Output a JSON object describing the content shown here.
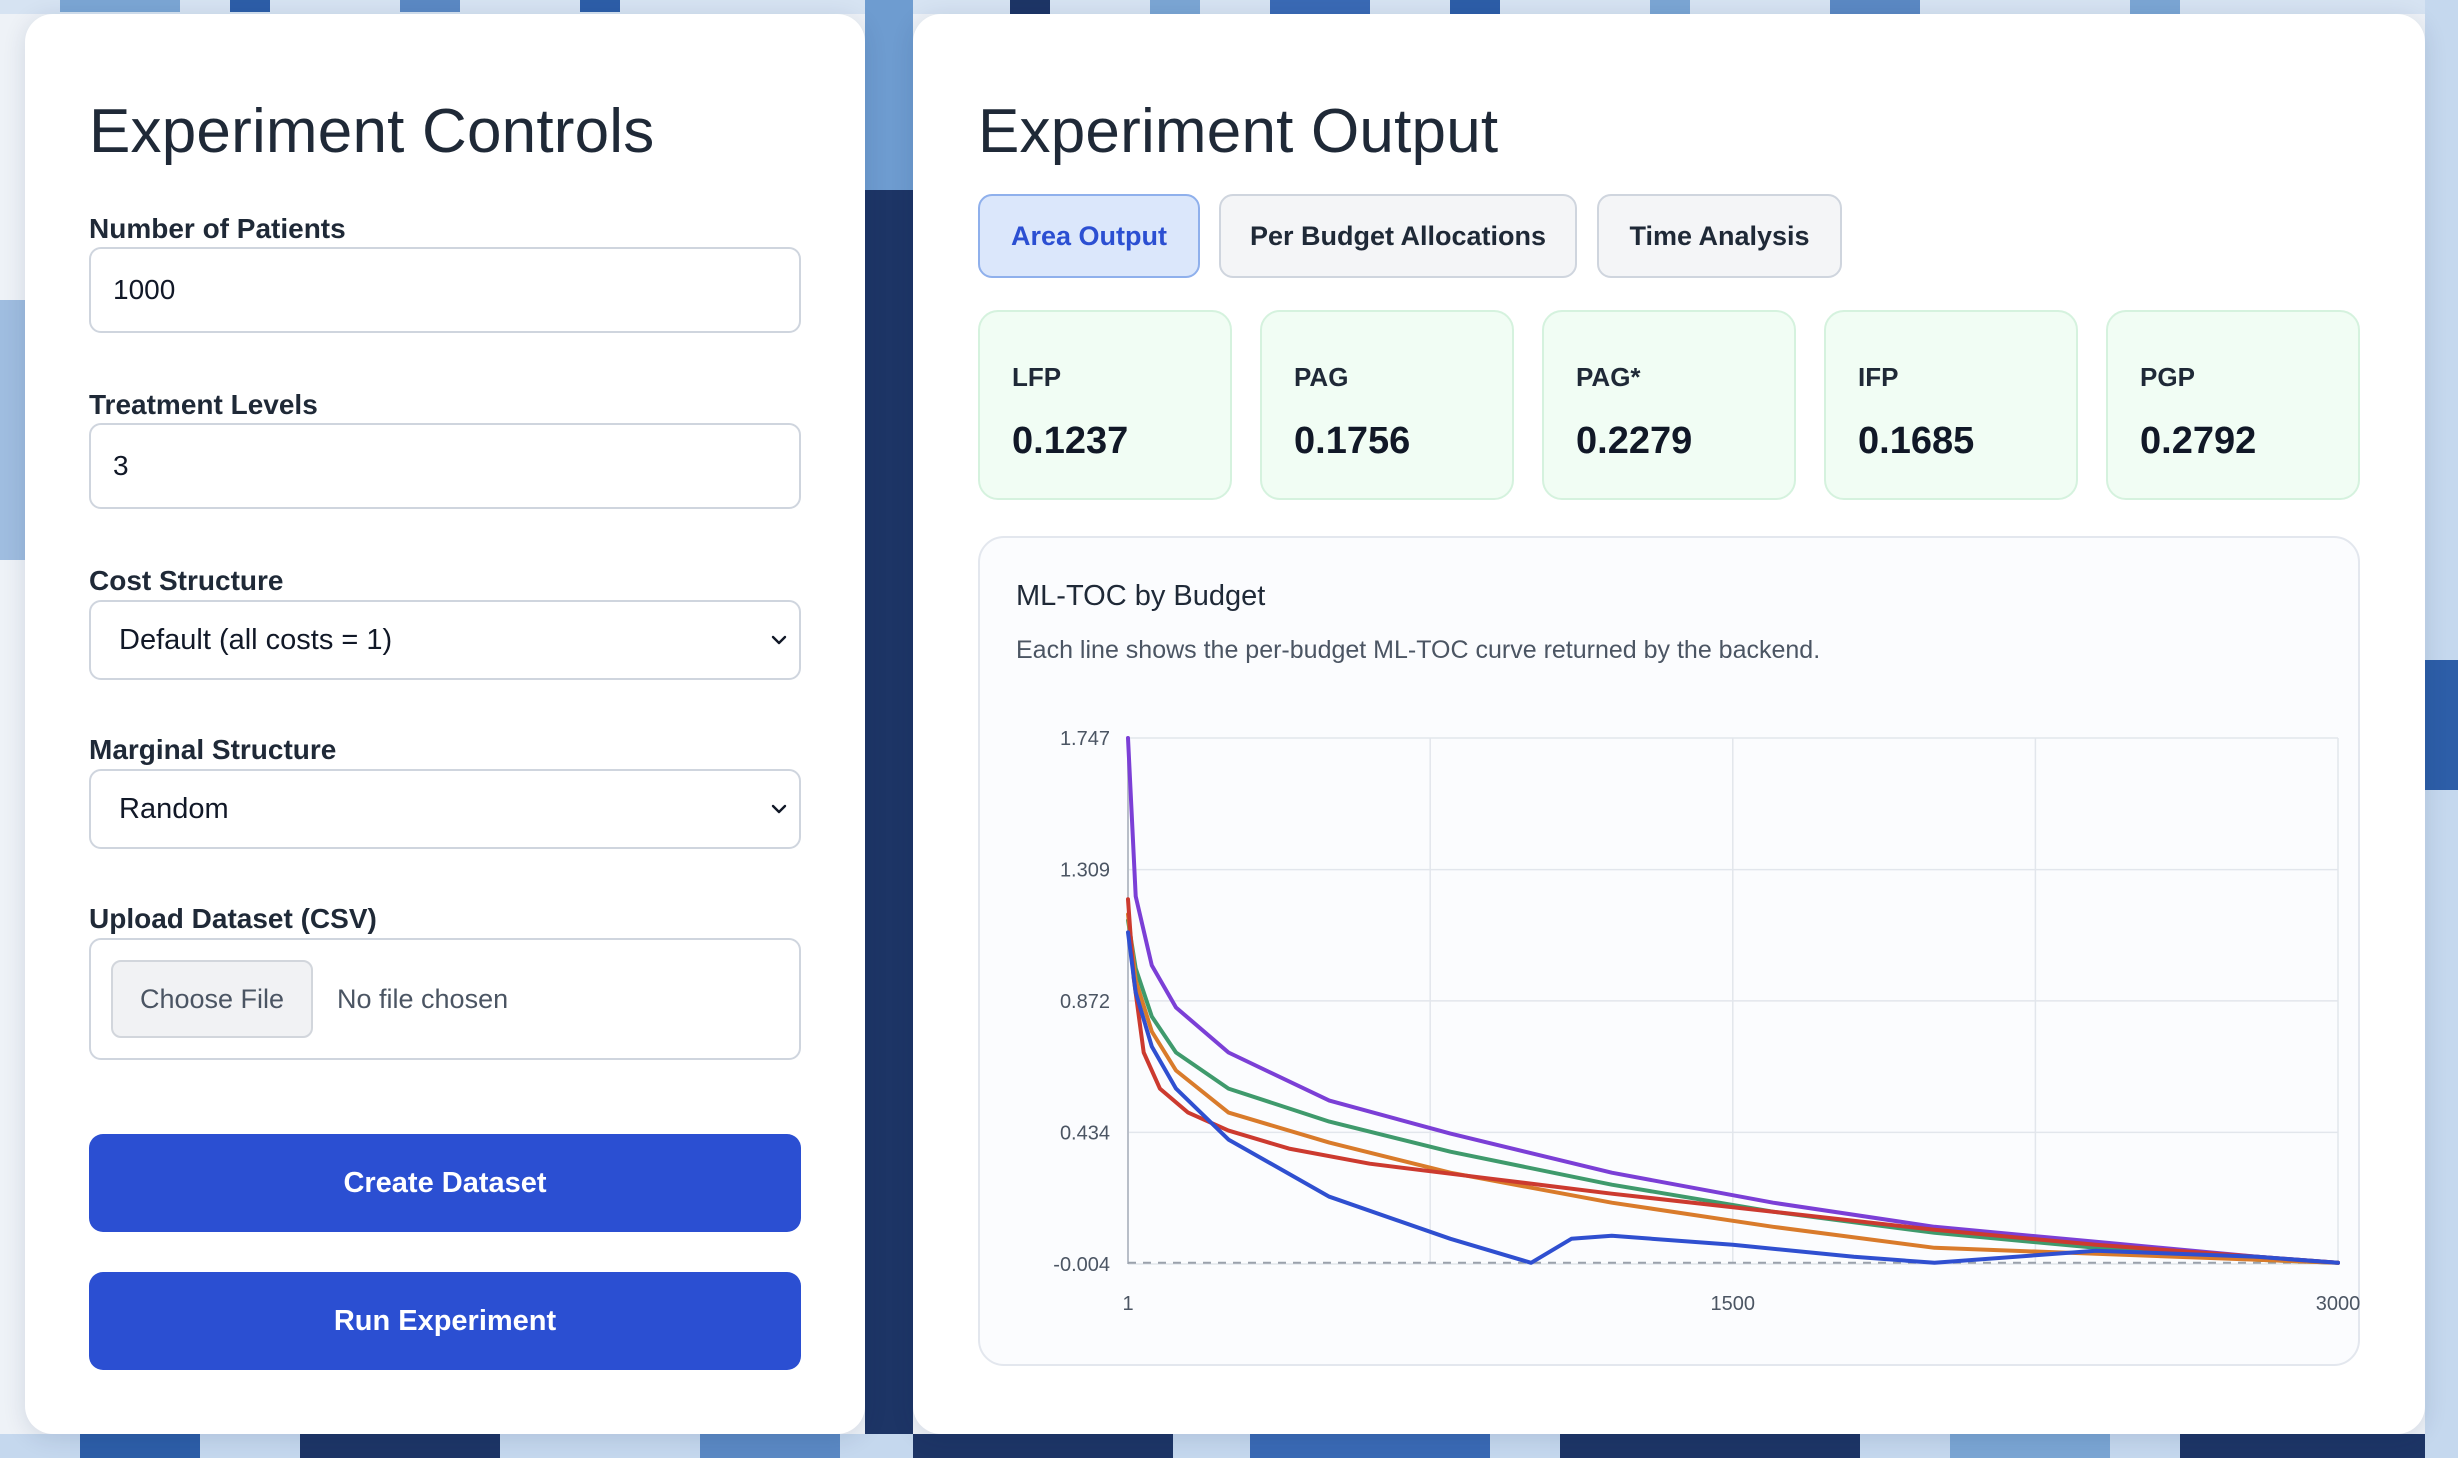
{
  "controls": {
    "title": "Experiment Controls",
    "patients_label": "Number of Patients",
    "patients_value": "1000",
    "levels_label": "Treatment Levels",
    "levels_value": "3",
    "cost_label": "Cost Structure",
    "cost_value": "Default (all costs = 1)",
    "marginal_label": "Marginal Structure",
    "marginal_value": "Random",
    "upload_label": "Upload Dataset (CSV)",
    "choose_file": "Choose File",
    "no_file": "No file chosen",
    "create_button": "Create Dataset",
    "run_button": "Run Experiment"
  },
  "output": {
    "title": "Experiment Output",
    "tabs": [
      {
        "label": "Area Output",
        "active": true
      },
      {
        "label": "Per Budget Allocations",
        "active": false
      },
      {
        "label": "Time Analysis",
        "active": false
      }
    ],
    "metrics": [
      {
        "label": "LFP",
        "value": "0.1237"
      },
      {
        "label": "PAG",
        "value": "0.1756"
      },
      {
        "label": "PAG*",
        "value": "0.2279"
      },
      {
        "label": "IFP",
        "value": "0.1685"
      },
      {
        "label": "PGP",
        "value": "0.2792"
      }
    ],
    "chart": {
      "title": "ML-TOC by Budget",
      "subtitle": "Each line shows the per-budget ML-TOC curve returned by the backend."
    }
  },
  "chart_data": {
    "type": "line",
    "title": "ML-TOC by Budget",
    "xlim": [
      1,
      3000
    ],
    "ylim": [
      -0.004,
      1.747
    ],
    "x_ticks": [
      "1",
      "1500",
      "3000"
    ],
    "y_ticks": [
      "1.747",
      "1.309",
      "0.872",
      "0.434",
      "-0.004"
    ],
    "grid": true,
    "baseline": 0,
    "series": [
      {
        "color": "#7b3fd6",
        "x": [
          1,
          20,
          60,
          120,
          250,
          500,
          800,
          1200,
          1600,
          2000,
          2400,
          2800,
          3000
        ],
        "y": [
          1.747,
          1.22,
          0.99,
          0.85,
          0.7,
          0.54,
          0.43,
          0.3,
          0.2,
          0.12,
          0.07,
          0.02,
          0.0
        ]
      },
      {
        "color": "#3f9a6c",
        "x": [
          1,
          20,
          60,
          120,
          250,
          500,
          800,
          1200,
          1600,
          2000,
          2400,
          2800,
          3000
        ],
        "y": [
          1.14,
          0.98,
          0.82,
          0.7,
          0.58,
          0.47,
          0.37,
          0.26,
          0.17,
          0.1,
          0.05,
          0.01,
          0.0
        ]
      },
      {
        "color": "#d97b2b",
        "x": [
          1,
          20,
          60,
          120,
          250,
          500,
          800,
          1200,
          1600,
          2000,
          2400,
          2800,
          3000
        ],
        "y": [
          1.16,
          0.94,
          0.77,
          0.64,
          0.5,
          0.4,
          0.3,
          0.2,
          0.12,
          0.05,
          0.03,
          0.01,
          0.0
        ]
      },
      {
        "color": "#cc3a2f",
        "x": [
          1,
          15,
          40,
          80,
          150,
          250,
          400,
          600,
          900,
          1200,
          1600,
          2000,
          2400,
          2800,
          3000
        ],
        "y": [
          1.21,
          0.95,
          0.7,
          0.58,
          0.5,
          0.44,
          0.38,
          0.33,
          0.28,
          0.23,
          0.17,
          0.11,
          0.06,
          0.02,
          0.0
        ]
      },
      {
        "color": "#2f4fd0",
        "x": [
          1,
          20,
          60,
          120,
          250,
          500,
          800,
          1000,
          1100,
          1200,
          1500,
          1800,
          2000,
          2400,
          2800,
          3000
        ],
        "y": [
          1.1,
          0.9,
          0.72,
          0.58,
          0.41,
          0.22,
          0.08,
          0.0,
          0.08,
          0.09,
          0.06,
          0.02,
          0.0,
          0.04,
          0.02,
          0.0
        ]
      }
    ]
  }
}
